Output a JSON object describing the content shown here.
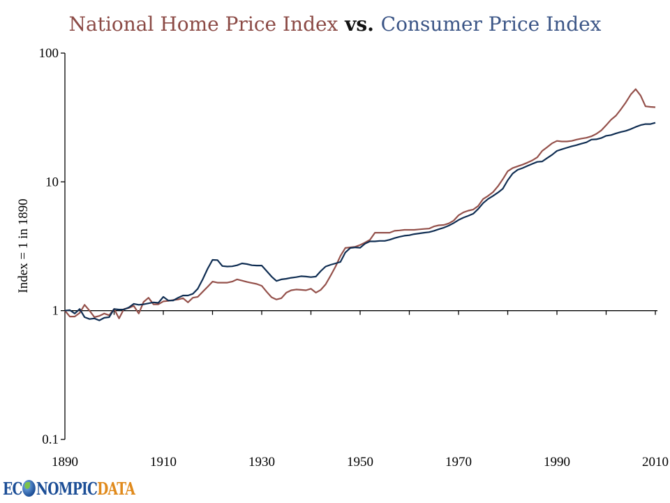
{
  "title": {
    "part1": "National Home Price Index",
    "part2": " vs. ",
    "part3": "Consumer Price Index"
  },
  "logo": {
    "prefix": "EC",
    "middle": "NOMPIC",
    "suffix": "DATA"
  },
  "colors": {
    "home": "#94504a",
    "cpi": "#0f2d52",
    "title_home": "#8b4a45",
    "title_cpi": "#3b5586"
  },
  "chart_data": {
    "type": "line",
    "title": "National Home Price Index vs. Consumer Price Index",
    "xlabel": "",
    "ylabel": "Index = 1 in 1890",
    "yscale": "log",
    "ylim": [
      0.1,
      100
    ],
    "xlim": [
      1890,
      2010
    ],
    "x_ticks": [
      1890,
      1910,
      1930,
      1950,
      1970,
      1990,
      2010
    ],
    "y_ticks": [
      0.1,
      1,
      10,
      100
    ],
    "y_tick_labels": [
      "0.1",
      "1",
      "10",
      "100"
    ],
    "grid": false,
    "legend": "none (series identified by title colors)",
    "x": [
      1890,
      1891,
      1892,
      1893,
      1894,
      1895,
      1896,
      1897,
      1898,
      1899,
      1900,
      1901,
      1902,
      1903,
      1904,
      1905,
      1906,
      1907,
      1908,
      1909,
      1910,
      1911,
      1912,
      1913,
      1914,
      1915,
      1916,
      1917,
      1918,
      1919,
      1920,
      1921,
      1922,
      1923,
      1924,
      1925,
      1926,
      1927,
      1928,
      1929,
      1930,
      1931,
      1932,
      1933,
      1934,
      1935,
      1936,
      1937,
      1938,
      1939,
      1940,
      1941,
      1942,
      1943,
      1944,
      1945,
      1946,
      1947,
      1948,
      1949,
      1950,
      1951,
      1952,
      1953,
      1954,
      1955,
      1956,
      1957,
      1958,
      1959,
      1960,
      1961,
      1962,
      1963,
      1964,
      1965,
      1966,
      1967,
      1968,
      1969,
      1970,
      1971,
      1972,
      1973,
      1974,
      1975,
      1976,
      1977,
      1978,
      1979,
      1980,
      1981,
      1982,
      1983,
      1984,
      1985,
      1986,
      1987,
      1988,
      1989,
      1990,
      1991,
      1992,
      1993,
      1994,
      1995,
      1996,
      1997,
      1998,
      1999,
      2000,
      2001,
      2002,
      2003,
      2004,
      2005,
      2006,
      2007,
      2008,
      2009,
      2010
    ],
    "series": [
      {
        "name": "National Home Price Index",
        "color": "#94504a",
        "values": [
          1.0,
          0.9,
          0.9,
          0.96,
          1.11,
          1.0,
          0.89,
          0.91,
          0.95,
          0.92,
          1.03,
          0.87,
          1.03,
          1.05,
          1.09,
          0.95,
          1.17,
          1.26,
          1.12,
          1.12,
          1.18,
          1.19,
          1.21,
          1.22,
          1.25,
          1.16,
          1.26,
          1.28,
          1.4,
          1.53,
          1.68,
          1.65,
          1.65,
          1.65,
          1.68,
          1.75,
          1.71,
          1.67,
          1.64,
          1.61,
          1.56,
          1.4,
          1.27,
          1.22,
          1.25,
          1.38,
          1.44,
          1.46,
          1.45,
          1.44,
          1.48,
          1.38,
          1.45,
          1.6,
          1.87,
          2.2,
          2.66,
          3.07,
          3.1,
          3.13,
          3.24,
          3.38,
          3.55,
          4.03,
          4.03,
          4.03,
          4.03,
          4.17,
          4.2,
          4.24,
          4.24,
          4.24,
          4.28,
          4.31,
          4.34,
          4.51,
          4.6,
          4.63,
          4.76,
          5.0,
          5.5,
          5.8,
          5.98,
          6.1,
          6.5,
          7.37,
          7.78,
          8.33,
          9.24,
          10.5,
          12.1,
          12.8,
          13.2,
          13.6,
          14.1,
          14.7,
          15.5,
          17.4,
          18.6,
          19.9,
          20.8,
          20.6,
          20.6,
          20.8,
          21.3,
          21.7,
          22.0,
          22.6,
          23.6,
          25.1,
          27.5,
          30.4,
          32.7,
          36.6,
          41.4,
          47.7,
          52.5,
          46.8,
          38.6,
          38.2,
          38.0
        ]
      },
      {
        "name": "Consumer Price Index",
        "color": "#0f2d52",
        "values": [
          1.0,
          1.01,
          0.95,
          1.03,
          0.89,
          0.86,
          0.87,
          0.84,
          0.88,
          0.89,
          1.03,
          1.02,
          1.02,
          1.06,
          1.13,
          1.11,
          1.12,
          1.14,
          1.16,
          1.15,
          1.28,
          1.2,
          1.2,
          1.26,
          1.31,
          1.31,
          1.35,
          1.48,
          1.75,
          2.11,
          2.48,
          2.47,
          2.22,
          2.2,
          2.21,
          2.25,
          2.33,
          2.3,
          2.25,
          2.24,
          2.24,
          2.03,
          1.84,
          1.7,
          1.75,
          1.77,
          1.8,
          1.82,
          1.85,
          1.84,
          1.82,
          1.84,
          2.03,
          2.2,
          2.27,
          2.33,
          2.39,
          2.83,
          3.07,
          3.1,
          3.08,
          3.31,
          3.45,
          3.45,
          3.48,
          3.48,
          3.55,
          3.66,
          3.75,
          3.82,
          3.85,
          3.93,
          3.98,
          4.03,
          4.07,
          4.17,
          4.29,
          4.41,
          4.57,
          4.79,
          5.06,
          5.28,
          5.45,
          5.66,
          6.16,
          6.84,
          7.37,
          7.78,
          8.25,
          8.85,
          10.3,
          11.6,
          12.4,
          12.8,
          13.3,
          13.8,
          14.3,
          14.4,
          15.3,
          16.2,
          17.4,
          17.9,
          18.4,
          18.9,
          19.3,
          19.8,
          20.3,
          21.3,
          21.4,
          21.9,
          22.8,
          23.1,
          23.8,
          24.4,
          24.9,
          25.7,
          26.7,
          27.6,
          28.1,
          28.1,
          28.8
        ]
      }
    ]
  }
}
